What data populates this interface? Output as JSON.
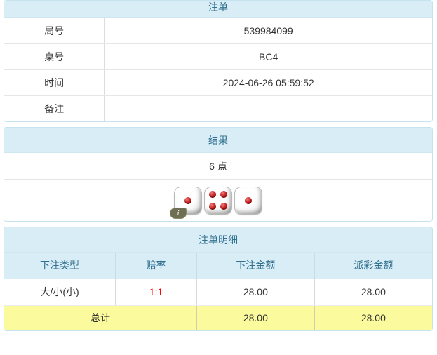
{
  "panels": {
    "bet": {
      "title": "注单",
      "rows": [
        {
          "label": "局号",
          "value": "539984099"
        },
        {
          "label": "桌号",
          "value": "BC4"
        },
        {
          "label": "时间",
          "value": "2024-06-26 05:59:52"
        },
        {
          "label": "备注",
          "value": ""
        }
      ]
    },
    "result": {
      "title": "结果",
      "points_text": "6 点",
      "dice": [
        1,
        4,
        1
      ],
      "info_badge_label": "i"
    },
    "details": {
      "title": "注单明细",
      "columns": [
        "下注类型",
        "赔率",
        "下注金额",
        "派彩金额"
      ],
      "rows": [
        {
          "bet_type": "大/小(小)",
          "odds": "1:1",
          "bet_amount": "28.00",
          "payout_amount": "28.00"
        }
      ],
      "total": {
        "label": "总计",
        "bet_amount": "28.00",
        "payout_amount": "28.00"
      }
    }
  },
  "colors": {
    "header_bg": "#d9edf7",
    "header_text": "#31708f",
    "panel_border": "#c5e3ef",
    "total_row_bg": "#fbfb9e",
    "odds_red": "#ff0000",
    "dice_pip": "#c01818",
    "info_badge_bg": "#6e6f52"
  }
}
